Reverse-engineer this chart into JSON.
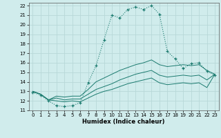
{
  "background_color": "#d0ecec",
  "grid_color": "#b8d8d8",
  "line_color": "#1a7a6e",
  "xlabel": "Humidex (Indice chaleur)",
  "xlim": [
    -0.5,
    23.5
  ],
  "ylim": [
    11,
    22.3
  ],
  "yticks": [
    11,
    12,
    13,
    14,
    15,
    16,
    17,
    18,
    19,
    20,
    21,
    22
  ],
  "xticks": [
    0,
    1,
    2,
    3,
    4,
    5,
    6,
    7,
    8,
    9,
    10,
    11,
    12,
    13,
    14,
    15,
    16,
    17,
    18,
    19,
    20,
    21,
    22,
    23
  ],
  "series1_x": [
    0,
    1,
    2,
    3,
    4,
    5,
    6,
    7,
    8,
    9,
    10,
    11,
    12,
    13,
    14,
    15,
    16,
    17,
    18,
    19,
    20,
    21,
    22,
    23
  ],
  "series1_y": [
    12.9,
    12.6,
    12.0,
    11.5,
    11.4,
    11.5,
    11.8,
    13.9,
    15.7,
    18.4,
    21.0,
    20.7,
    21.6,
    21.85,
    21.6,
    22.0,
    21.1,
    17.2,
    16.4,
    15.4,
    15.9,
    16.0,
    15.1,
    14.7
  ],
  "series2_x": [
    0,
    1,
    2,
    3,
    4,
    5,
    6,
    7,
    8,
    9,
    10,
    11,
    12,
    13,
    14,
    15,
    16,
    17,
    18,
    19,
    20,
    21,
    22,
    23
  ],
  "series2_y": [
    13.0,
    12.7,
    12.1,
    12.5,
    12.4,
    12.5,
    12.5,
    13.2,
    14.0,
    14.4,
    14.8,
    15.2,
    15.5,
    15.8,
    16.0,
    16.3,
    15.8,
    15.6,
    15.7,
    15.8,
    15.7,
    15.8,
    15.2,
    14.8
  ],
  "series3_x": [
    0,
    1,
    2,
    3,
    4,
    5,
    6,
    7,
    8,
    9,
    10,
    11,
    12,
    13,
    14,
    15,
    16,
    17,
    18,
    19,
    20,
    21,
    22,
    23
  ],
  "series3_y": [
    13.0,
    12.7,
    12.1,
    12.3,
    12.1,
    12.2,
    12.2,
    12.7,
    13.2,
    13.5,
    13.8,
    14.2,
    14.5,
    14.8,
    15.0,
    15.2,
    14.7,
    14.5,
    14.6,
    14.7,
    14.6,
    14.7,
    14.2,
    14.8
  ],
  "series4_x": [
    0,
    1,
    2,
    3,
    4,
    5,
    6,
    7,
    8,
    9,
    10,
    11,
    12,
    13,
    14,
    15,
    16,
    17,
    18,
    19,
    20,
    21,
    22,
    23
  ],
  "series4_y": [
    13.0,
    12.7,
    12.1,
    12.0,
    11.9,
    12.0,
    11.9,
    12.3,
    12.7,
    13.0,
    13.2,
    13.5,
    13.8,
    14.0,
    14.2,
    14.4,
    13.9,
    13.7,
    13.8,
    13.9,
    13.8,
    13.9,
    13.4,
    14.8
  ]
}
